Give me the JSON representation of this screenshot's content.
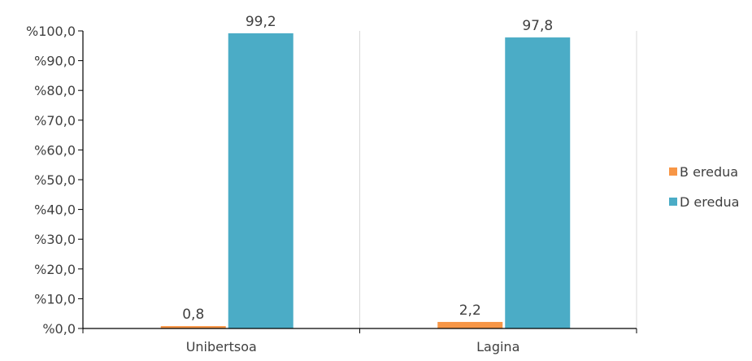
{
  "chart_data": {
    "type": "bar",
    "title": "",
    "xlabel": "",
    "ylabel": "",
    "categories": [
      "Unibertsoa",
      "Lagina"
    ],
    "series": [
      {
        "name": "B eredua",
        "color": "#F79646",
        "values": [
          0.8,
          2.2
        ],
        "labels": [
          "0,8",
          "2,2"
        ]
      },
      {
        "name": "D eredua",
        "color": "#4BACC6",
        "values": [
          99.2,
          97.8
        ],
        "labels": [
          "99,2",
          "97,8"
        ]
      }
    ],
    "ylim": [
      0,
      100
    ],
    "yticks": [
      0,
      10,
      20,
      30,
      40,
      50,
      60,
      70,
      80,
      90,
      100
    ],
    "ytick_labels": [
      "%0,0",
      "%10,0",
      "%20,0",
      "%30,0",
      "%40,0",
      "%50,0",
      "%60,0",
      "%70,0",
      "%80,0",
      "%90,0",
      "%100,0"
    ],
    "grid": "vertical category separators",
    "legend_position": "right"
  }
}
